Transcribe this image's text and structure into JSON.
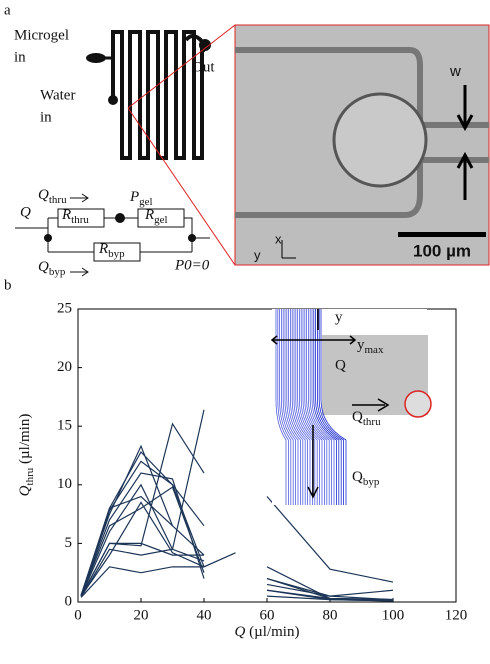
{
  "panel_a": {
    "label": "a",
    "microgel_in": [
      "Microgel",
      "in"
    ],
    "water_in": [
      "Water",
      "in"
    ],
    "out": "Out",
    "width_label": "w",
    "scale_bar": "100 µm",
    "axis_x": "x",
    "axis_y": "y",
    "circuit": {
      "q": "Q",
      "q_thru": {
        "main": "Q",
        "sub": "thru"
      },
      "p_gel": {
        "main": "P",
        "sub": "gel"
      },
      "r_thru": {
        "main": "R",
        "sub": "thru"
      },
      "r_gel": {
        "main": "R",
        "sub": "gel"
      },
      "r_byp": {
        "main": "R",
        "sub": "byp"
      },
      "q_byp": {
        "main": "Q",
        "sub": "byp"
      },
      "p0": "P0=0"
    }
  },
  "chart_data": {
    "type": "line",
    "panel_label": "b",
    "xlabel": {
      "symbol": "Q",
      "unit": "(µl/min)"
    },
    "ylabel": {
      "symbol": "Q",
      "sub": "thru",
      "unit": "(µl/min)"
    },
    "x": [
      1,
      10,
      20,
      30,
      40,
      50,
      60,
      80,
      100
    ],
    "series": [
      {
        "color": "#1c3557",
        "values": [
          0.6,
          7.5,
          13.3,
          6.5,
          4,
          null,
          2,
          0.3,
          0.2
        ]
      },
      {
        "color": "#1c3557",
        "values": [
          0.5,
          5,
          4.8,
          15.2,
          11,
          null,
          3,
          0.3,
          0.2
        ]
      },
      {
        "color": "#1c3557",
        "values": [
          0.4,
          4.5,
          4,
          4.5,
          16.4,
          null,
          9,
          2.8,
          1.7
        ]
      },
      {
        "color": "#1c3557",
        "values": [
          0.5,
          8,
          12.8,
          10,
          3,
          null,
          1.5,
          0.5,
          0.2
        ]
      },
      {
        "color": "#1c3557",
        "values": [
          0.6,
          7,
          11,
          10.5,
          2,
          null,
          1,
          0.2,
          0.1
        ]
      },
      {
        "color": "#1c3557",
        "values": [
          0.5,
          6,
          10,
          4.5,
          3.5,
          null,
          2,
          0.5,
          1
        ]
      },
      {
        "color": "#1c3557",
        "values": [
          0.6,
          8,
          9,
          6.5,
          null,
          null,
          null,
          null,
          null
        ]
      },
      {
        "color": "#1c3557",
        "values": [
          0.5,
          4,
          8.5,
          4.2,
          3,
          null,
          1,
          0.3,
          0.2
        ]
      },
      {
        "color": "#1c3557",
        "values": [
          0.5,
          5,
          5,
          4,
          4,
          null,
          1.2,
          null,
          null
        ]
      },
      {
        "color": "#1c3557",
        "values": [
          0.4,
          3,
          2.5,
          3,
          3,
          4.2,
          null,
          null,
          null
        ]
      },
      {
        "color": "#1c3557",
        "values": [
          0.5,
          7.8,
          12,
          10,
          6.5,
          null,
          null,
          null,
          null
        ]
      },
      {
        "color": "#1c3557",
        "values": [
          0.6,
          6.5,
          8,
          9.8,
          2.5,
          null,
          0.5,
          0.2,
          0.1
        ]
      }
    ],
    "xlim": [
      0,
      120
    ],
    "xticks": [
      0,
      20,
      40,
      60,
      80,
      100,
      120
    ],
    "ylim": [
      0,
      25
    ],
    "yticks": [
      0,
      5,
      10,
      15,
      20,
      25
    ],
    "inset": {
      "y": "y",
      "y_max": {
        "main": "y",
        "sub": "max"
      },
      "q": "Q",
      "q_thru": {
        "main": "Q",
        "sub": "thru"
      },
      "q_byp": {
        "main": "Q",
        "sub": "byp"
      }
    }
  }
}
